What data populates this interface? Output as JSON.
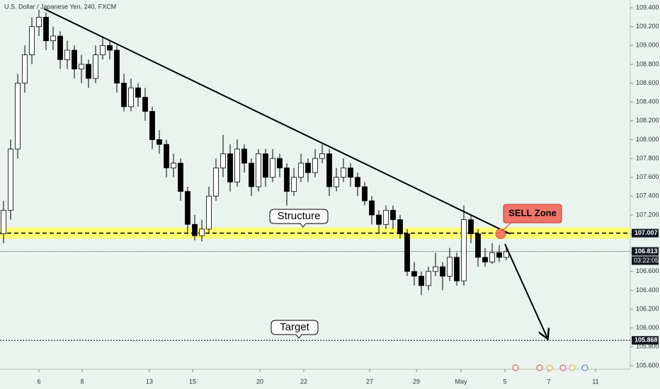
{
  "chart_data": {
    "type": "candlestick",
    "title": "U.S. Dollar / Japanese Yen, 240, FXCM",
    "open": [
      107.0,
      107.25,
      107.9,
      108.6,
      108.9,
      109.2,
      109.3,
      109.05,
      109.1,
      108.85,
      108.95,
      108.75,
      108.8,
      108.65,
      108.9,
      109.0,
      108.95,
      108.6,
      108.35,
      108.55,
      108.45,
      108.3,
      108.0,
      107.95,
      107.7,
      107.75,
      107.45,
      107.1,
      106.98,
      107.05,
      107.4,
      107.7,
      107.85,
      107.55,
      107.9,
      107.75,
      107.5,
      107.85,
      107.6,
      107.8,
      107.7,
      107.45,
      107.6,
      107.75,
      107.65,
      107.8,
      107.85,
      107.5,
      107.6,
      107.7,
      107.6,
      107.5,
      107.35,
      107.2,
      107.1,
      107.25,
      107.15,
      107.0,
      106.6,
      106.55,
      106.45,
      106.6,
      106.65,
      106.55,
      106.75,
      106.5,
      107.15,
      107.0,
      106.75,
      106.7,
      106.8,
      106.75
    ],
    "high": [
      107.35,
      108.0,
      108.7,
      109.0,
      109.3,
      109.38,
      109.35,
      109.2,
      109.15,
      109.05,
      109.0,
      108.9,
      108.85,
      109.0,
      109.1,
      109.05,
      109.0,
      108.7,
      108.65,
      108.6,
      108.55,
      108.35,
      108.1,
      108.0,
      107.85,
      107.8,
      107.5,
      107.2,
      107.15,
      107.5,
      107.8,
      108.05,
      107.95,
      108.0,
      107.95,
      107.8,
      107.9,
      107.9,
      107.9,
      107.85,
      107.75,
      107.7,
      107.85,
      107.8,
      107.9,
      107.95,
      107.9,
      107.7,
      107.8,
      107.75,
      107.65,
      107.55,
      107.4,
      107.25,
      107.3,
      107.3,
      107.2,
      107.05,
      106.7,
      106.6,
      106.65,
      106.8,
      106.7,
      106.85,
      106.8,
      107.3,
      107.2,
      107.05,
      106.85,
      106.9,
      106.88,
      106.85
    ],
    "low": [
      106.9,
      107.15,
      107.8,
      108.5,
      108.8,
      109.1,
      108.95,
      108.95,
      108.75,
      108.75,
      108.65,
      108.6,
      108.55,
      108.6,
      108.85,
      108.85,
      108.5,
      108.3,
      108.3,
      108.35,
      108.2,
      107.9,
      107.85,
      107.6,
      107.6,
      107.35,
      107.0,
      106.93,
      106.92,
      107.0,
      107.35,
      107.6,
      107.45,
      107.5,
      107.65,
      107.4,
      107.45,
      107.5,
      107.55,
      107.6,
      107.3,
      107.4,
      107.55,
      107.55,
      107.6,
      107.75,
      107.4,
      107.45,
      107.55,
      107.5,
      107.4,
      107.3,
      107.1,
      107.0,
      107.05,
      107.05,
      106.95,
      106.55,
      106.45,
      106.35,
      106.4,
      106.55,
      106.4,
      106.5,
      106.45,
      106.45,
      106.9,
      106.65,
      106.65,
      106.68,
      106.7,
      106.72
    ],
    "close": [
      107.25,
      107.9,
      108.6,
      108.9,
      109.2,
      109.3,
      109.05,
      109.1,
      108.85,
      108.95,
      108.75,
      108.8,
      108.65,
      108.9,
      109.0,
      108.95,
      108.6,
      108.35,
      108.55,
      108.45,
      108.3,
      108.0,
      107.95,
      107.7,
      107.75,
      107.45,
      107.1,
      106.98,
      107.05,
      107.4,
      107.7,
      107.85,
      107.55,
      107.9,
      107.75,
      107.5,
      107.85,
      107.6,
      107.8,
      107.7,
      107.45,
      107.6,
      107.75,
      107.65,
      107.8,
      107.85,
      107.5,
      107.6,
      107.7,
      107.6,
      107.5,
      107.35,
      107.2,
      107.1,
      107.25,
      107.15,
      107.0,
      106.6,
      106.55,
      106.45,
      106.6,
      106.65,
      106.55,
      106.75,
      106.5,
      107.15,
      107.0,
      106.75,
      106.7,
      106.8,
      106.75,
      106.81
    ],
    "xlim": [
      0,
      89
    ],
    "xticks": [
      {
        "value": 5.5,
        "label": "6"
      },
      {
        "value": 11.6,
        "label": "8"
      },
      {
        "value": 21.1,
        "label": "13"
      },
      {
        "value": 27.2,
        "label": "15"
      },
      {
        "value": 36.7,
        "label": "20"
      },
      {
        "value": 42.9,
        "label": "22"
      },
      {
        "value": 52.2,
        "label": "27"
      },
      {
        "value": 58.8,
        "label": "29"
      },
      {
        "value": 65.1,
        "label": "May"
      },
      {
        "value": 71.3,
        "label": "5"
      },
      {
        "value": 77.5,
        "label": "7"
      },
      {
        "value": 84.1,
        "label": "11"
      }
    ],
    "ylim": [
      105.562,
      109.483
    ],
    "yticks": [
      {
        "value": 105.6,
        "label": "105.600"
      },
      {
        "value": 105.8,
        "label": "105.800"
      },
      {
        "value": 106.0,
        "label": "106.000"
      },
      {
        "value": 106.2,
        "label": "106.200"
      },
      {
        "value": 106.4,
        "label": "106.400"
      },
      {
        "value": 106.6,
        "label": "106.600"
      },
      {
        "value": 106.8,
        "label": "106.800"
      },
      {
        "value": 107.0,
        "label": "107.000"
      },
      {
        "value": 107.2,
        "label": "107.200"
      },
      {
        "value": 107.4,
        "label": "107.400"
      },
      {
        "value": 107.6,
        "label": "107.600"
      },
      {
        "value": 107.8,
        "label": "107.800"
      },
      {
        "value": 108.0,
        "label": "108.000"
      },
      {
        "value": 108.2,
        "label": "108.200"
      },
      {
        "value": 108.4,
        "label": "108.400"
      },
      {
        "value": 108.6,
        "label": "108.600"
      },
      {
        "value": 108.8,
        "label": "108.800"
      },
      {
        "value": 109.0,
        "label": "109.000"
      },
      {
        "value": 109.2,
        "label": "109.200"
      },
      {
        "value": 109.4,
        "label": "109.400"
      }
    ],
    "structure_level": 107.007,
    "current_price": 106.813,
    "countdown": "03:22:05",
    "target_level": 105.868,
    "structure_label": "Structure",
    "target_label": "Target",
    "sell_label": "SELL Zone",
    "trendline": {
      "x": [
        6.2,
        72
      ],
      "y": [
        109.39,
        107.0
      ]
    },
    "arrow": {
      "x": [
        71.3,
        77.3
      ],
      "y": [
        106.892,
        105.893
      ]
    },
    "sell_point": {
      "x": 70.7,
      "y": 107.0
    },
    "up_color": "#ffffff",
    "down_color": "#000000",
    "zone_color": "#ffff66"
  }
}
